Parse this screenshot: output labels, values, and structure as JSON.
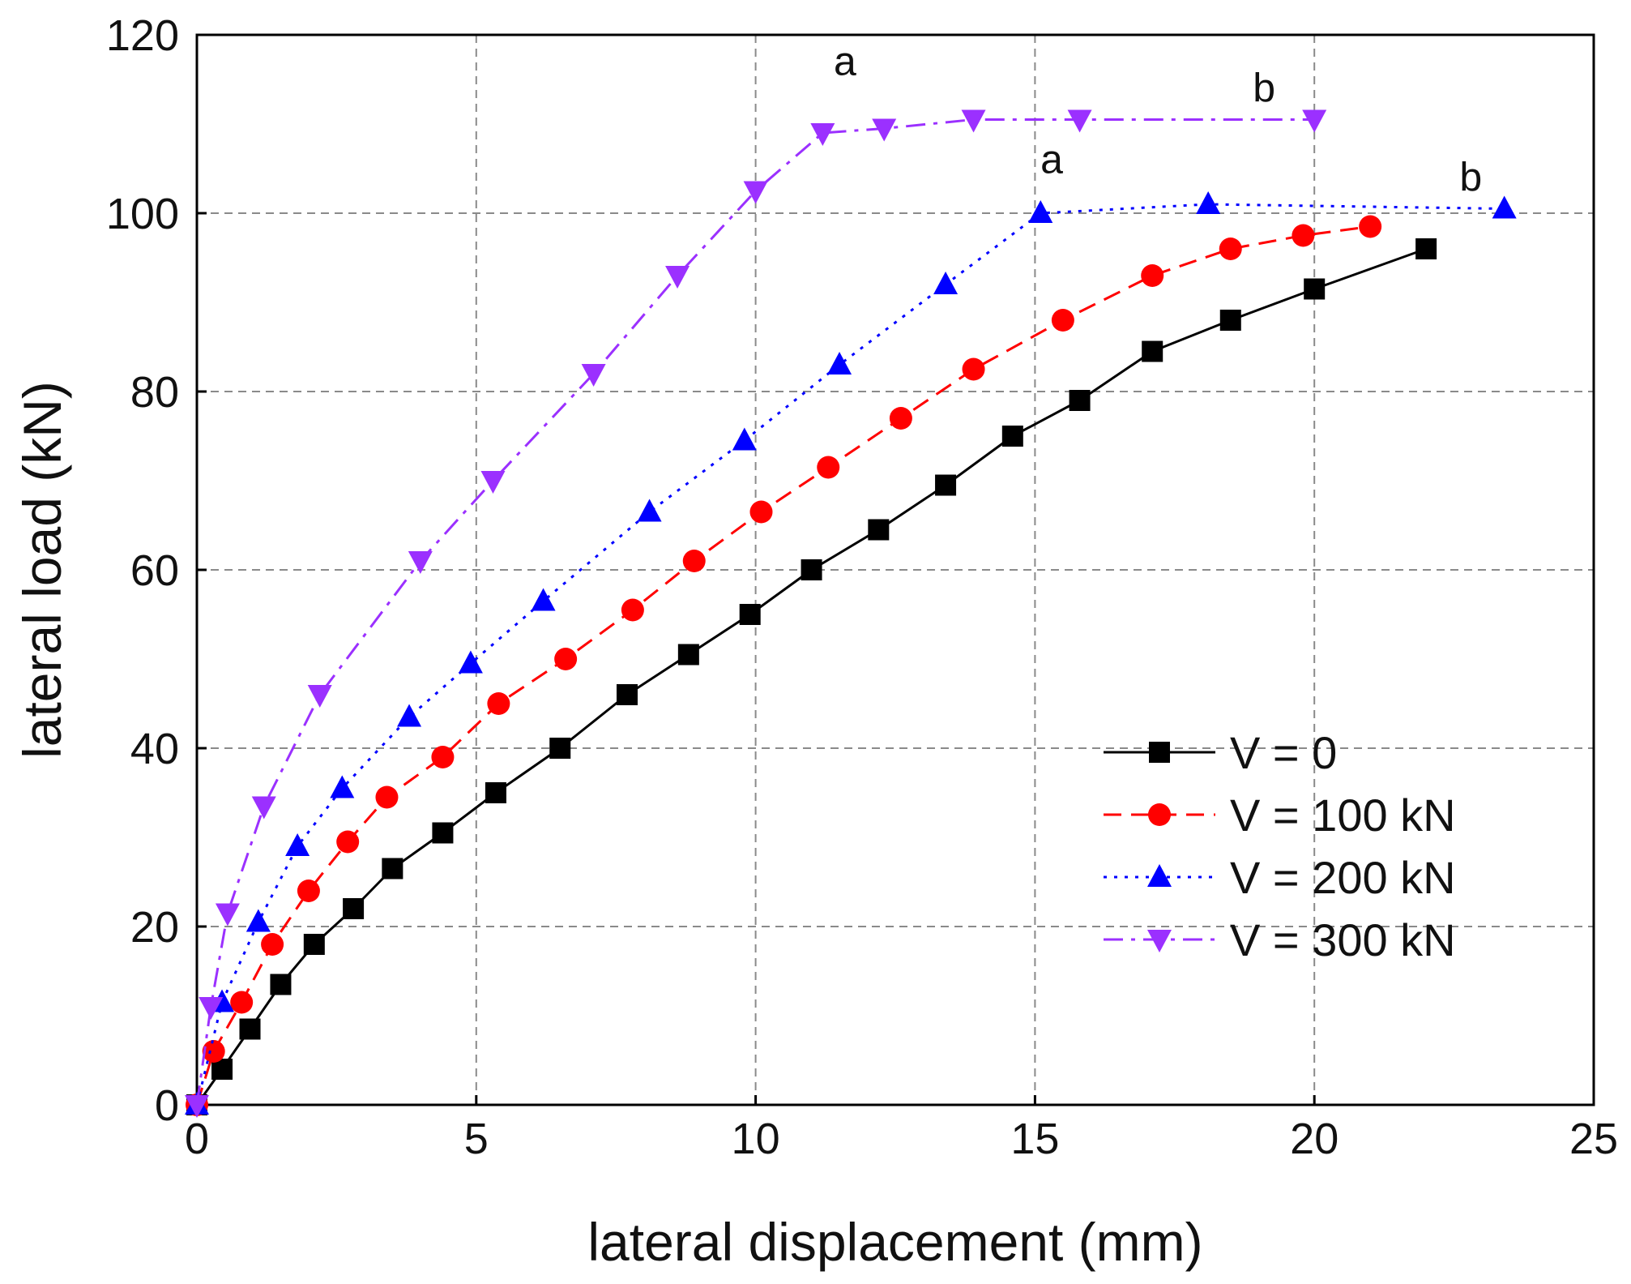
{
  "chart_data": {
    "type": "line",
    "title": "",
    "xlabel": "lateral displacement (mm)",
    "ylabel": "lateral load (kN)",
    "xlim": [
      0,
      25
    ],
    "ylim": [
      0,
      120
    ],
    "xticks": [
      0,
      5,
      10,
      15,
      20,
      25
    ],
    "yticks": [
      0,
      20,
      40,
      60,
      80,
      100,
      120
    ],
    "xtick_labels": [
      "0",
      "5",
      "10",
      "15",
      "20",
      "25"
    ],
    "ytick_labels": [
      "0",
      "20",
      "40",
      "60",
      "80",
      "100",
      "120"
    ],
    "grid": true,
    "legend_position": "lower-right",
    "series": [
      {
        "name": "V = 0",
        "color": "#000000",
        "line_style": "solid",
        "marker": "square",
        "x": [
          0,
          0.45,
          0.95,
          1.5,
          2.1,
          2.8,
          3.5,
          4.4,
          5.35,
          6.5,
          7.7,
          8.8,
          9.9,
          11.0,
          12.2,
          13.4,
          14.6,
          15.8,
          17.1,
          18.5,
          20.0,
          22.0
        ],
        "y": [
          0,
          4,
          8.5,
          13.5,
          18,
          22,
          26.5,
          30.5,
          35,
          40,
          46,
          50.5,
          55,
          60,
          64.5,
          69.5,
          75,
          79,
          84.5,
          88,
          91.5,
          96
        ]
      },
      {
        "name": "V = 100 kN",
        "color": "#ff0000",
        "line_style": "dashed",
        "marker": "circle",
        "x": [
          0,
          0.3,
          0.8,
          1.35,
          2.0,
          2.7,
          3.4,
          4.4,
          5.4,
          6.6,
          7.8,
          8.9,
          10.1,
          11.3,
          12.6,
          13.9,
          15.5,
          17.1,
          18.5,
          19.8,
          21.0
        ],
        "y": [
          0,
          6,
          11.5,
          18,
          24,
          29.5,
          34.5,
          39,
          45,
          50,
          55.5,
          61,
          66.5,
          71.5,
          77,
          82.5,
          88,
          93,
          96,
          97.5,
          98.5
        ]
      },
      {
        "name": "V = 200 kN",
        "color": "#0000ff",
        "line_style": "dotted",
        "marker": "triangle-up",
        "x": [
          0,
          0.45,
          1.1,
          1.8,
          2.6,
          3.8,
          4.9,
          6.2,
          8.1,
          9.8,
          11.5,
          13.4,
          15.1,
          18.1,
          23.4
        ],
        "y": [
          0,
          11.5,
          20.5,
          29,
          35.5,
          43.5,
          49.5,
          56.5,
          66.5,
          74.5,
          83,
          92,
          100,
          101,
          100.5
        ]
      },
      {
        "name": "V = 300 kN",
        "color": "#9b30ff",
        "line_style": "dash-dot",
        "marker": "triangle-down",
        "x": [
          0,
          0.25,
          0.55,
          1.2,
          2.2,
          4.0,
          5.3,
          7.1,
          8.6,
          10.0,
          11.2,
          12.3,
          13.9,
          15.8,
          20.0
        ],
        "y": [
          0,
          11,
          21.5,
          33.5,
          46,
          61,
          70,
          82,
          93,
          102.5,
          109,
          109.5,
          110.5,
          110.5,
          110.5
        ]
      }
    ],
    "annotations": [
      {
        "text": "a",
        "x": 11.6,
        "y": 115.5
      },
      {
        "text": "b",
        "x": 19.1,
        "y": 112.5
      },
      {
        "text": "a",
        "x": 15.3,
        "y": 104.5
      },
      {
        "text": "b",
        "x": 22.8,
        "y": 102.5
      }
    ]
  }
}
